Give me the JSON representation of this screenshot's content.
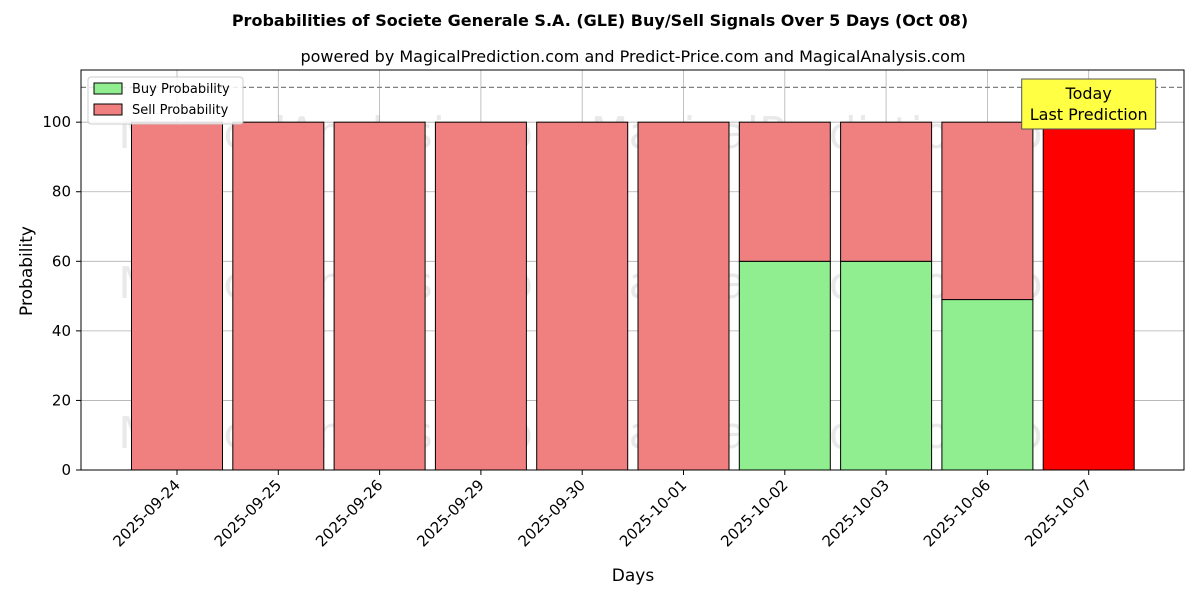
{
  "chart_data": {
    "type": "bar",
    "stacked": true,
    "title": "Probabilities of Societe Generale S.A. (GLE) Buy/Sell Signals Over 5 Days (Oct 08)",
    "subtitle": "powered by MagicalPrediction.com and Predict-Price.com and MagicalAnalysis.com",
    "xlabel": "Days",
    "ylabel": "Probability",
    "ylim": [
      0,
      115
    ],
    "yticks": [
      0,
      20,
      40,
      60,
      80,
      100
    ],
    "grid": true,
    "legend_position": "top-left",
    "categories": [
      "2025-09-24",
      "2025-09-25",
      "2025-09-26",
      "2025-09-29",
      "2025-09-30",
      "2025-10-01",
      "2025-10-02",
      "2025-10-03",
      "2025-10-06",
      "2025-10-07"
    ],
    "series": [
      {
        "name": "Buy Probability",
        "color": "#90ee90",
        "values": [
          0,
          0,
          0,
          0,
          0,
          0,
          60,
          60,
          49,
          0
        ]
      },
      {
        "name": "Sell Probability",
        "color": "#f08080",
        "values": [
          100,
          100,
          100,
          100,
          100,
          100,
          40,
          40,
          51,
          100
        ]
      }
    ],
    "highlight": {
      "index": 9,
      "color": "#ff0000"
    },
    "reference_line": {
      "y": 110,
      "style": "dashed",
      "color": "#808080"
    },
    "annotation": {
      "lines": [
        "Today",
        "Last Prediction"
      ],
      "background": "#ffff44"
    },
    "watermarks": [
      "MagicalAnalysis.com",
      "MagicalPrediction.com"
    ]
  }
}
